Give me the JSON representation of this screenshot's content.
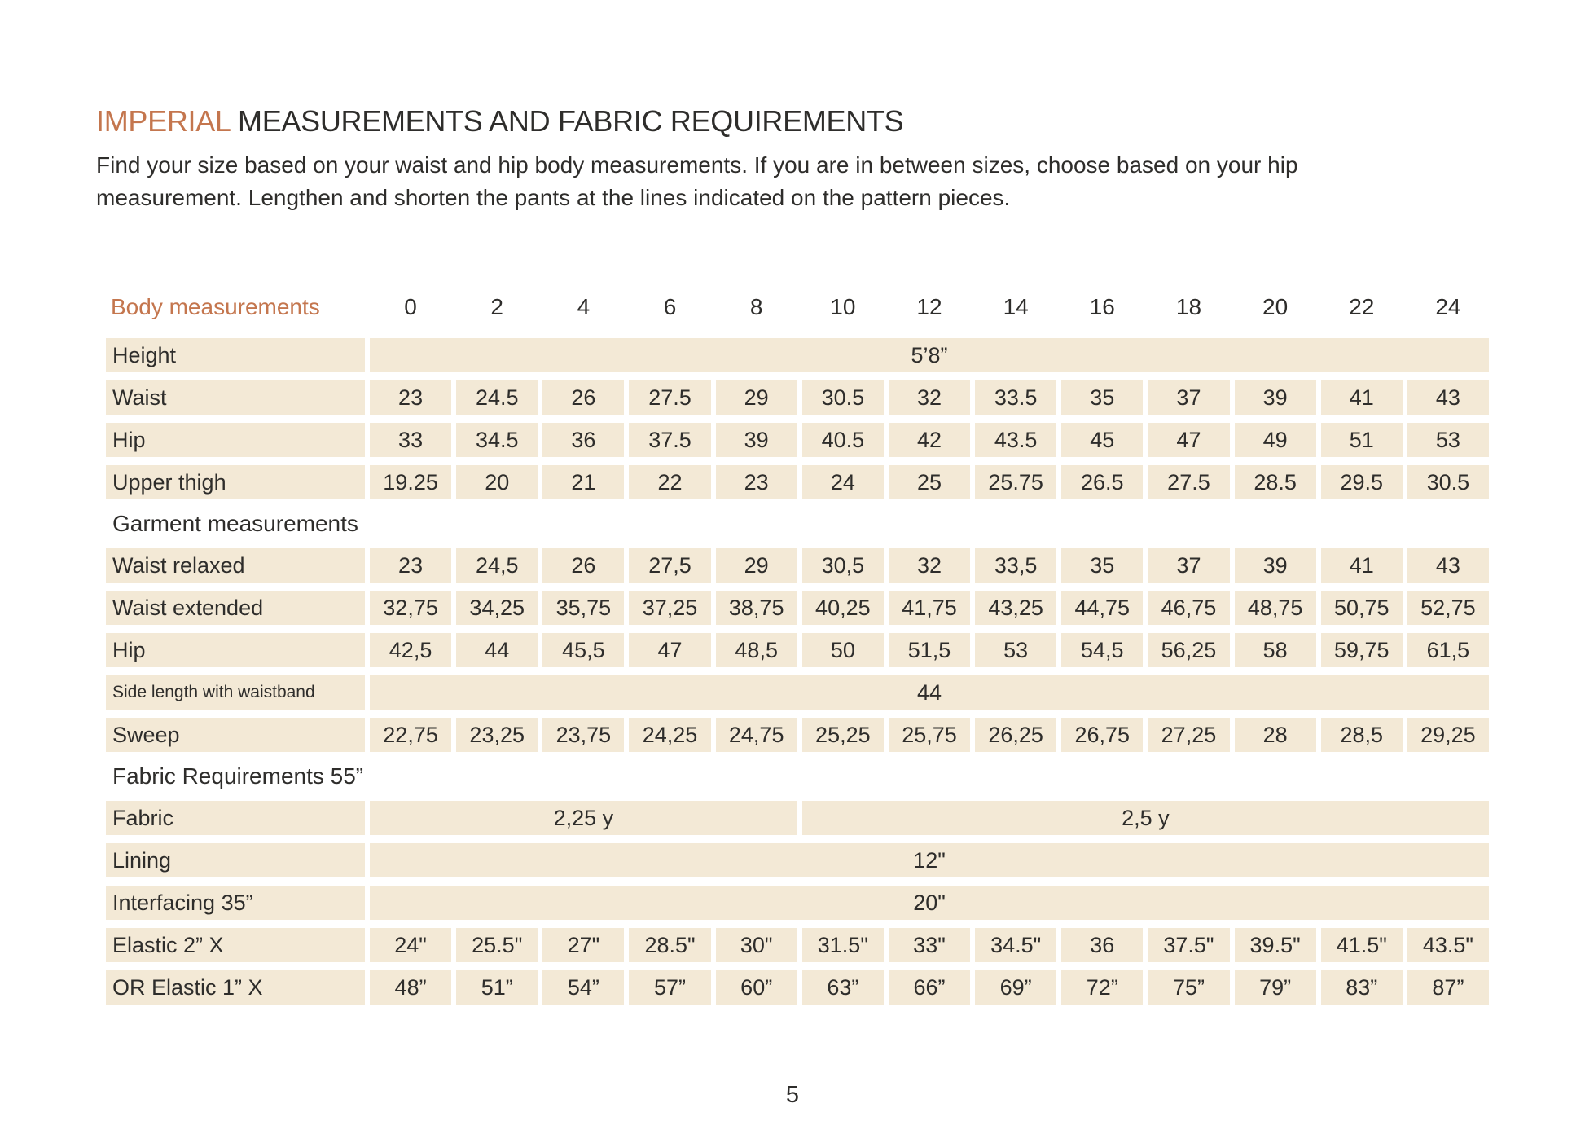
{
  "page": {
    "title_highlight": "IMPERIAL",
    "title_rest": " MEASUREMENTS AND FABRIC REQUIREMENTS",
    "subtitle_line1": "Find your size based on your waist and hip body measurements. If you are in between sizes, choose based on your hip",
    "subtitle_line2": "measurement. Lengthen and shorten the pants at the lines indicated on the pattern pieces.",
    "page_number": "5"
  },
  "colors": {
    "accent": "#C4764E",
    "cell_background": "#F3E9D6",
    "text": "#2E2D2B"
  },
  "table": {
    "header": {
      "label": "Body measurements",
      "sizes": [
        "0",
        "2",
        "4",
        "6",
        "8",
        "10",
        "12",
        "14",
        "16",
        "18",
        "20",
        "22",
        "24"
      ]
    },
    "rows": [
      {
        "type": "span",
        "label": "Height",
        "value": "5’8”"
      },
      {
        "type": "data",
        "label": "Waist",
        "values": [
          "23",
          "24.5",
          "26",
          "27.5",
          "29",
          "30.5",
          "32",
          "33.5",
          "35",
          "37",
          "39",
          "41",
          "43"
        ]
      },
      {
        "type": "data",
        "label": "Hip",
        "values": [
          "33",
          "34.5",
          "36",
          "37.5",
          "39",
          "40.5",
          "42",
          "43.5",
          "45",
          "47",
          "49",
          "51",
          "53"
        ]
      },
      {
        "type": "data",
        "label": "Upper thigh",
        "values": [
          "19.25",
          "20",
          "21",
          "22",
          "23",
          "24",
          "25",
          "25.75",
          "26.5",
          "27.5",
          "28.5",
          "29.5",
          "30.5"
        ]
      },
      {
        "type": "section",
        "label": "Garment measurements"
      },
      {
        "type": "data",
        "label": "Waist relaxed",
        "values": [
          "23",
          "24,5",
          "26",
          "27,5",
          "29",
          "30,5",
          "32",
          "33,5",
          "35",
          "37",
          "39",
          "41",
          "43"
        ]
      },
      {
        "type": "data",
        "label": "Waist extended",
        "values": [
          "32,75",
          "34,25",
          "35,75",
          "37,25",
          "38,75",
          "40,25",
          "41,75",
          "43,25",
          "44,75",
          "46,75",
          "48,75",
          "50,75",
          "52,75"
        ]
      },
      {
        "type": "data",
        "label": "Hip",
        "values": [
          "42,5",
          "44",
          "45,5",
          "47",
          "48,5",
          "50",
          "51,5",
          "53",
          "54,5",
          "56,25",
          "58",
          "59,75",
          "61,5"
        ]
      },
      {
        "type": "span",
        "label": "Side length with waistband",
        "small_label": true,
        "value": "44"
      },
      {
        "type": "data",
        "label": "Sweep",
        "values": [
          "22,75",
          "23,25",
          "23,75",
          "24,25",
          "24,75",
          "25,25",
          "25,75",
          "26,25",
          "26,75",
          "27,25",
          "28",
          "28,5",
          "29,25"
        ]
      },
      {
        "type": "section",
        "label": "Fabric Requirements 55”"
      },
      {
        "type": "split",
        "label": "Fabric",
        "segments": [
          {
            "value": "2,25 y",
            "span": 5
          },
          {
            "value": "2,5 y",
            "span": 8
          }
        ]
      },
      {
        "type": "span",
        "label": "Lining",
        "value": "12\""
      },
      {
        "type": "span",
        "label": "Interfacing 35”",
        "value": "20\""
      },
      {
        "type": "data",
        "label": "Elastic 2” X",
        "values": [
          "24\"",
          "25.5\"",
          "27\"",
          "28.5\"",
          "30\"",
          "31.5\"",
          "33\"",
          "34.5\"",
          "36",
          "37.5\"",
          "39.5\"",
          "41.5\"",
          "43.5\""
        ]
      },
      {
        "type": "data",
        "label": "OR Elastic 1”  X",
        "values": [
          "48”",
          "51”",
          "54”",
          "57”",
          "60”",
          "63”",
          "66”",
          "69”",
          "72”",
          "75”",
          "79”",
          "83”",
          "87”"
        ]
      }
    ]
  }
}
